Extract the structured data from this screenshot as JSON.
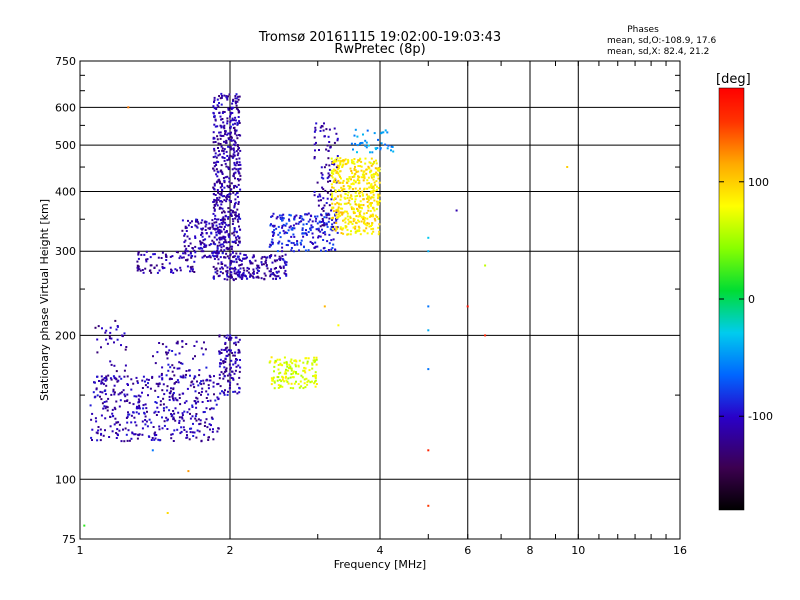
{
  "chart_data": {
    "type": "scatter",
    "title": "Tromsø 20161115 19:02:00-19:03:43",
    "subtitle": "RwPretec (8p)",
    "stats": {
      "heading": "Phases",
      "line1": "mean, sd,O:-108.9, 17.6",
      "line2": "mean, sd,X:  82.4, 21.2"
    },
    "xlabel": "Frequency [MHz]",
    "ylabel": "Stationary phase Virtual Height [km]",
    "x_scale": "log",
    "y_scale": "log",
    "xlim": [
      1,
      16
    ],
    "ylim": [
      75,
      750
    ],
    "x_ticks": [
      1,
      2,
      4,
      6,
      8,
      10,
      16
    ],
    "y_ticks": [
      75,
      100,
      200,
      300,
      400,
      500,
      600,
      750
    ],
    "grid": true,
    "colorbar": {
      "label": "[deg]",
      "min": -180,
      "max": 180,
      "ticks": [
        100,
        0,
        -100
      ]
    },
    "clusters": [
      {
        "fmin": 1.05,
        "fmax": 1.9,
        "hmin": 120,
        "hmax": 165,
        "phase": -110,
        "count": 420
      },
      {
        "fmin": 1.9,
        "fmax": 2.1,
        "hmin": 150,
        "hmax": 200,
        "phase": -110,
        "count": 120
      },
      {
        "fmin": 1.07,
        "fmax": 1.25,
        "hmin": 150,
        "hmax": 215,
        "phase": -115,
        "count": 50
      },
      {
        "fmin": 1.4,
        "fmax": 1.8,
        "hmin": 160,
        "hmax": 195,
        "phase": -110,
        "count": 60
      },
      {
        "fmin": 2.4,
        "fmax": 3.0,
        "hmin": 155,
        "hmax": 180,
        "phase": 70,
        "count": 140
      },
      {
        "fmin": 1.3,
        "fmax": 1.7,
        "hmin": 270,
        "hmax": 300,
        "phase": -115,
        "count": 80
      },
      {
        "fmin": 1.6,
        "fmax": 1.95,
        "hmin": 290,
        "hmax": 350,
        "phase": -110,
        "count": 140
      },
      {
        "fmin": 1.85,
        "fmax": 2.1,
        "hmin": 260,
        "hmax": 640,
        "phase": -112,
        "count": 560
      },
      {
        "fmin": 2.0,
        "fmax": 2.6,
        "hmin": 262,
        "hmax": 295,
        "phase": -110,
        "count": 160
      },
      {
        "fmin": 2.4,
        "fmax": 3.3,
        "hmin": 300,
        "hmax": 360,
        "phase": -90,
        "count": 200
      },
      {
        "fmin": 2.95,
        "fmax": 3.3,
        "hmin": 330,
        "hmax": 560,
        "phase": -112,
        "count": 110
      },
      {
        "fmin": 3.2,
        "fmax": 4.0,
        "hmin": 325,
        "hmax": 470,
        "phase": 90,
        "count": 460
      },
      {
        "fmin": 3.5,
        "fmax": 4.3,
        "hmin": 480,
        "hmax": 540,
        "phase": -50,
        "count": 40
      }
    ],
    "outliers": [
      {
        "x": 1.02,
        "y": 80,
        "phase": 20
      },
      {
        "x": 1.5,
        "y": 85,
        "phase": 95
      },
      {
        "x": 1.65,
        "y": 104,
        "phase": 120
      },
      {
        "x": 1.4,
        "y": 115,
        "phase": -60
      },
      {
        "x": 5.0,
        "y": 88,
        "phase": 150
      },
      {
        "x": 5.0,
        "y": 115,
        "phase": 160
      },
      {
        "x": 6.5,
        "y": 200,
        "phase": 160
      },
      {
        "x": 6.5,
        "y": 280,
        "phase": 60
      },
      {
        "x": 6.0,
        "y": 230,
        "phase": 170
      },
      {
        "x": 5.7,
        "y": 365,
        "phase": -110
      },
      {
        "x": 9.5,
        "y": 450,
        "phase": 100
      },
      {
        "x": 1.25,
        "y": 600,
        "phase": 130
      },
      {
        "x": 5.0,
        "y": 230,
        "phase": -60
      },
      {
        "x": 5.0,
        "y": 300,
        "phase": -40
      },
      {
        "x": 5.0,
        "y": 320,
        "phase": -30
      },
      {
        "x": 5.0,
        "y": 205,
        "phase": -40
      },
      {
        "x": 5.0,
        "y": 170,
        "phase": -60
      },
      {
        "x": 3.1,
        "y": 230,
        "phase": 110
      },
      {
        "x": 3.3,
        "y": 210,
        "phase": 80
      }
    ]
  }
}
